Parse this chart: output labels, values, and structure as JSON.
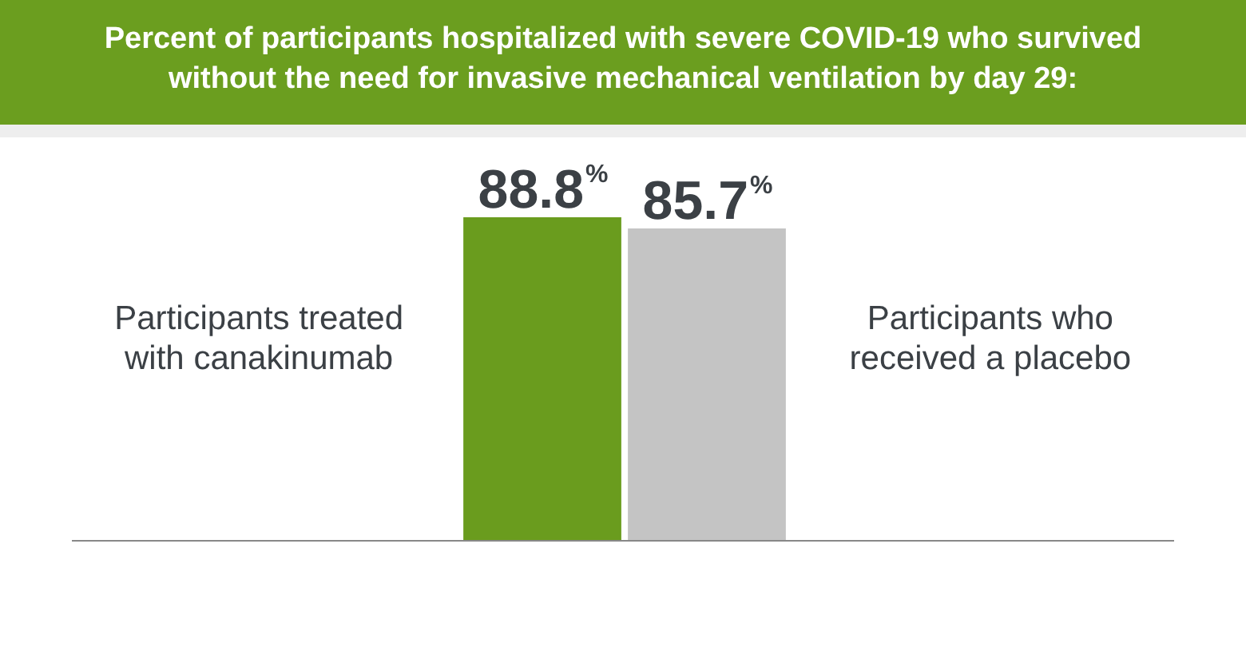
{
  "chart_data": {
    "type": "bar",
    "title": "Percent of participants hospitalized with severe COVID-19 who survived without the need for invasive mechanical ventilation by day 29:",
    "categories": [
      "Participants treated with canakinumab",
      "Participants who received a placebo"
    ],
    "values": [
      88.8,
      85.7
    ],
    "colors": [
      "#6a9c1e",
      "#c4c4c4"
    ],
    "value_labels": [
      "88.8%",
      "85.7%"
    ],
    "relative": false,
    "grid": false,
    "legend": false,
    "tick_labels": false
  }
}
